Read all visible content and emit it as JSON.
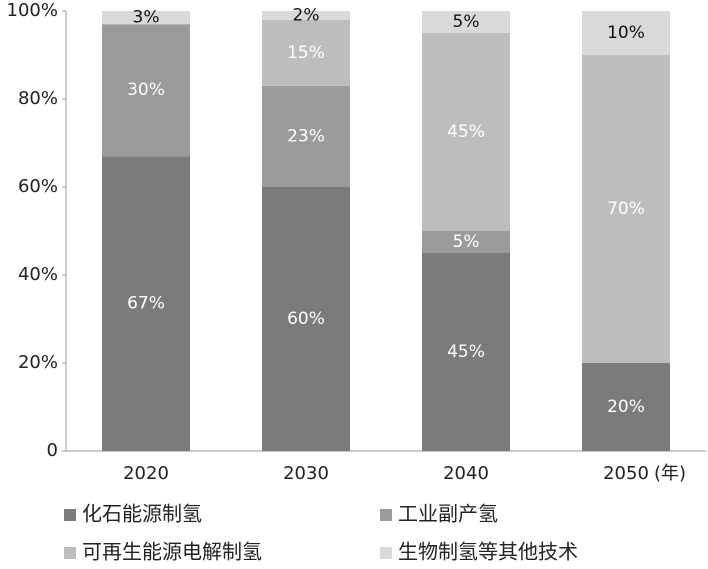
{
  "chart_data": {
    "type": "stacked_bar",
    "categories": [
      "2020",
      "2030",
      "2040",
      "2050"
    ],
    "x_label": "(年)",
    "series": [
      {
        "name": "化石能源制氢",
        "color": "#7b7b7b",
        "label_color": "#ffffff",
        "values": [
          67,
          60,
          45,
          20
        ],
        "value_labels": [
          "67%",
          "60%",
          "45%",
          "20%"
        ]
      },
      {
        "name": "工业副产氢",
        "color": "#9b9b9b",
        "label_color": "#ffffff",
        "values": [
          30,
          23,
          5,
          null
        ],
        "value_labels": [
          "30%",
          "23%",
          "5%",
          null
        ]
      },
      {
        "name": "可再生能源电解制氢",
        "color": "#bdbdbd",
        "label_color": "#ffffff",
        "values": [
          null,
          15,
          45,
          70
        ],
        "value_labels": [
          null,
          "15%",
          "45%",
          "70%"
        ]
      },
      {
        "name": "生物制氢等其他技术",
        "color": "#d9d9d9",
        "label_color": "#111111",
        "values": [
          3,
          2,
          5,
          10
        ],
        "value_labels": [
          "3%",
          "2%",
          "5%",
          "10%"
        ]
      }
    ],
    "ylim": [
      0,
      100
    ],
    "yticks": [
      0,
      {
        "value": 20,
        "label": "20%"
      },
      {
        "value": 40,
        "label": "40%"
      },
      {
        "value": 60,
        "label": "60%"
      },
      {
        "value": 80,
        "label": "80%"
      },
      {
        "value": 100,
        "label": "100%"
      }
    ],
    "grid": false
  }
}
